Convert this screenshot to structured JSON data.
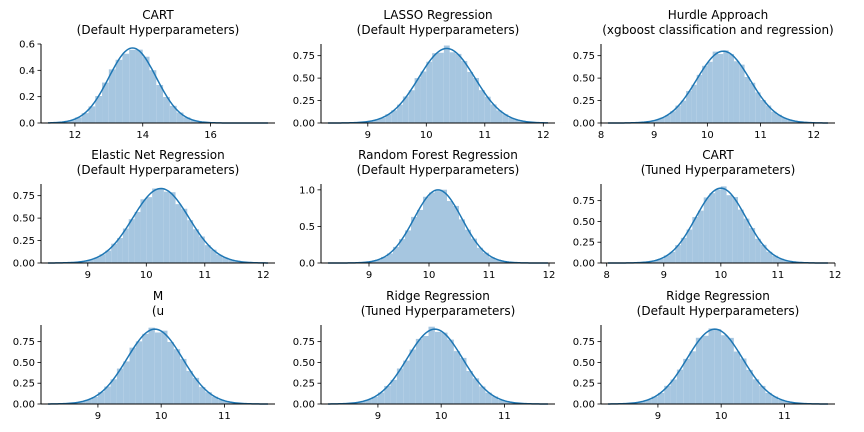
{
  "figure": {
    "colors": {
      "hist_fill": "#a6c6e0",
      "kde_line": "#1f77b4",
      "axis": "#000000",
      "background": "#ffffff"
    }
  },
  "chart_data": [
    {
      "type": "area",
      "title": "CART",
      "subtitle": "(Default Hyperparameters)",
      "mean": 13.7,
      "sd": 0.7,
      "peak": 0.57,
      "xlim": [
        11.0,
        17.9
      ],
      "ylim": [
        0,
        0.6
      ],
      "xticks": [
        12,
        14,
        16
      ],
      "xtick_labels": [
        "12",
        "14",
        "16"
      ],
      "yticks": [
        0,
        0.2,
        0.4,
        0.6
      ],
      "ytick_labels": [
        "0.0",
        "0.2",
        "0.4",
        "0.6"
      ],
      "bin_width": 0.2
    },
    {
      "type": "area",
      "title": "LASSO Regression",
      "subtitle": "(Default Hyperparameters)",
      "mean": 10.35,
      "sd": 0.48,
      "peak": 0.83,
      "xlim": [
        8.2,
        12.2
      ],
      "ylim": [
        0,
        0.88
      ],
      "xticks": [
        9,
        10,
        11,
        12
      ],
      "xtick_labels": [
        "9",
        "10",
        "11",
        "12"
      ],
      "yticks": [
        0,
        0.25,
        0.5,
        0.75
      ],
      "ytick_labels": [
        "0.00",
        "0.25",
        "0.50",
        "0.75"
      ],
      "bin_width": 0.1
    },
    {
      "type": "area",
      "title": "Hurdle Approach",
      "subtitle": "(xgboost classification and regression)",
      "mean": 10.3,
      "sd": 0.5,
      "peak": 0.8,
      "xlim": [
        8.0,
        12.4
      ],
      "ylim": [
        0,
        0.88
      ],
      "xticks": [
        8,
        9,
        10,
        11,
        12
      ],
      "xtick_labels": [
        "8",
        "9",
        "10",
        "11",
        "12"
      ],
      "yticks": [
        0,
        0.25,
        0.5,
        0.75
      ],
      "ytick_labels": [
        "0.00",
        "0.25",
        "0.50",
        "0.75"
      ],
      "bin_width": 0.1
    },
    {
      "type": "area",
      "title": "Elastic Net Regression",
      "subtitle": "(Default Hyperparameters)",
      "mean": 10.25,
      "sd": 0.48,
      "peak": 0.83,
      "xlim": [
        8.2,
        12.2
      ],
      "ylim": [
        0,
        0.88
      ],
      "xticks": [
        9,
        10,
        11,
        12
      ],
      "xtick_labels": [
        "9",
        "10",
        "11",
        "12"
      ],
      "yticks": [
        0,
        0.25,
        0.5,
        0.75
      ],
      "ytick_labels": [
        "0.00",
        "0.25",
        "0.50",
        "0.75"
      ],
      "bin_width": 0.1
    },
    {
      "type": "area",
      "title": "Random Forest Regression",
      "subtitle": "(Default Hyperparameters)",
      "mean": 10.15,
      "sd": 0.4,
      "peak": 1.0,
      "xlim": [
        8.2,
        12.1
      ],
      "ylim": [
        0,
        1.08
      ],
      "xticks": [
        9,
        10,
        11,
        12
      ],
      "xtick_labels": [
        "9",
        "10",
        "11",
        "12"
      ],
      "yticks": [
        0,
        0.5,
        1.0
      ],
      "ytick_labels": [
        "0.0",
        "0.5",
        "1.0"
      ],
      "bin_width": 0.1
    },
    {
      "type": "area",
      "title": "CART",
      "subtitle": "(Tuned Hyperparameters)",
      "mean": 10.0,
      "sd": 0.44,
      "peak": 0.9,
      "xlim": [
        7.9,
        12.0
      ],
      "ylim": [
        0,
        0.95
      ],
      "xticks": [
        8,
        9,
        10,
        11,
        12
      ],
      "xtick_labels": [
        "8",
        "9",
        "10",
        "11",
        "12"
      ],
      "yticks": [
        0,
        0.25,
        0.5,
        0.75
      ],
      "ytick_labels": [
        "0.00",
        "0.25",
        "0.50",
        "0.75"
      ],
      "bin_width": 0.1
    },
    {
      "type": "area",
      "title": "M",
      "subtitle": "(u",
      "mean": 9.9,
      "sd": 0.44,
      "peak": 0.9,
      "xlim": [
        8.1,
        11.8
      ],
      "ylim": [
        0,
        0.95
      ],
      "xticks": [
        9,
        10,
        11
      ],
      "xtick_labels": [
        "9",
        "10",
        "11"
      ],
      "yticks": [
        0,
        0.25,
        0.5,
        0.75
      ],
      "ytick_labels": [
        "0.00",
        "0.25",
        "0.50",
        "0.75"
      ],
      "bin_width": 0.1
    },
    {
      "type": "area",
      "title": "Ridge Regression",
      "subtitle": "(Tuned Hyperparameters)",
      "mean": 9.9,
      "sd": 0.44,
      "peak": 0.9,
      "xlim": [
        8.1,
        11.8
      ],
      "ylim": [
        0,
        0.95
      ],
      "xticks": [
        9,
        10,
        11
      ],
      "xtick_labels": [
        "9",
        "10",
        "11"
      ],
      "yticks": [
        0,
        0.25,
        0.5,
        0.75
      ],
      "ytick_labels": [
        "0.00",
        "0.25",
        "0.50",
        "0.75"
      ],
      "bin_width": 0.1
    },
    {
      "type": "area",
      "title": "Ridge Regression",
      "subtitle": "(Default Hyperparameters)",
      "mean": 9.9,
      "sd": 0.44,
      "peak": 0.9,
      "xlim": [
        8.1,
        11.8
      ],
      "ylim": [
        0,
        0.95
      ],
      "xticks": [
        9,
        10,
        11
      ],
      "xtick_labels": [
        "9",
        "10",
        "11"
      ],
      "yticks": [
        0,
        0.25,
        0.5,
        0.75
      ],
      "ytick_labels": [
        "0.00",
        "0.25",
        "0.50",
        "0.75"
      ],
      "bin_width": 0.1
    }
  ]
}
